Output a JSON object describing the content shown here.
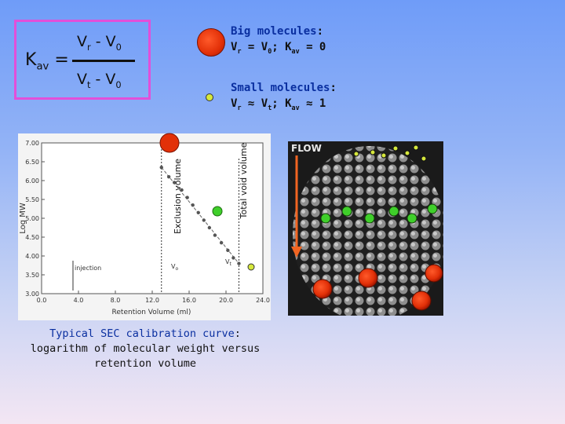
{
  "formula": {
    "lhs_main": "K",
    "lhs_sub": "av",
    "equals": " =",
    "num_a": "V",
    "num_a_sub": "r",
    "num_op": " - ",
    "num_b": "V",
    "num_b_sub": "0",
    "den_a": "V",
    "den_a_sub": "t",
    "den_op": " - ",
    "den_b": "V",
    "den_b_sub": "0"
  },
  "big": {
    "title": "Big molecules",
    "colon": ":",
    "line2_a": "V",
    "line2_a_sub": "r",
    "line2_b": " = V",
    "line2_b_sub": "0",
    "line2_c": "; K",
    "line2_c_sub": "av",
    "line2_d": " = 0"
  },
  "small": {
    "title": "Small molecules",
    "colon": ":",
    "line2_a": "V",
    "line2_a_sub": "r",
    "line2_b": " ≈ V",
    "line2_b_sub": "t",
    "line2_c": "; K",
    "line2_c_sub": "av",
    "line2_d": " ≈ 1"
  },
  "chart": {
    "xlabel": "Retention Volume (ml)",
    "ylabel": "Log MW",
    "x_ticks": [
      "0.0",
      "4.0",
      "8.0",
      "12.0",
      "16.0",
      "20.0",
      "24.0"
    ],
    "y_ticks": [
      "7.00",
      "6.50",
      "6.00",
      "5.50",
      "5.00",
      "4.50",
      "4.00",
      "3.50",
      "3.00"
    ],
    "injection_label": "injection",
    "v0_label": "V",
    "v0_sub": "o",
    "vt_label": "V",
    "vt_sub": "t",
    "exclusion_label": "Exclusion volume",
    "total_void_label": "Total void volume"
  },
  "chart_data": {
    "type": "scatter",
    "xlabel": "Retention Volume (ml)",
    "ylabel": "Log MW",
    "xlim": [
      0,
      24
    ],
    "ylim": [
      3.0,
      7.0
    ],
    "x": [
      13.0,
      13.8,
      14.4,
      15.2,
      15.8,
      16.4,
      17.0,
      17.6,
      18.2,
      18.8,
      19.5,
      20.2,
      20.8,
      21.4
    ],
    "y": [
      6.35,
      6.1,
      5.95,
      5.75,
      5.55,
      5.35,
      5.15,
      4.95,
      4.75,
      4.55,
      4.35,
      4.15,
      3.95,
      3.8
    ]
  },
  "caption": {
    "line1_pre": "Typical SEC calibration curve",
    "line1_colon": ":",
    "line2": "logarithm of molecular weight versus",
    "line3": "retention volume"
  },
  "column": {
    "flow_label": "FLOW"
  },
  "colors": {
    "big": "#e23008",
    "small": "#d6e83c",
    "medium": "#3fcf2a",
    "formula_border": "#e24fd9"
  }
}
